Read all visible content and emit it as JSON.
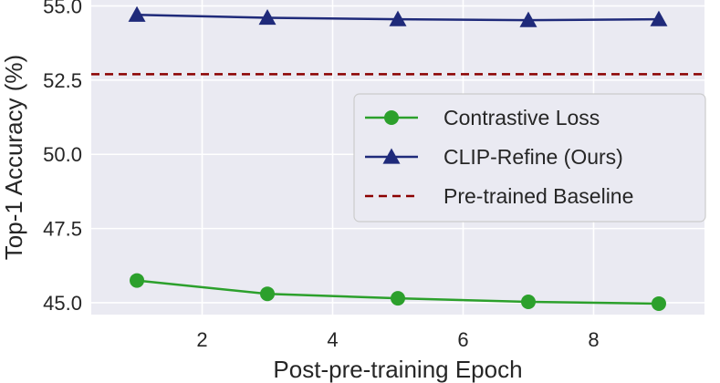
{
  "chart_data": {
    "type": "line",
    "title": "",
    "xlabel": "Post-pre-training Epoch",
    "ylabel": "Top-1 Accuracy (%)",
    "xlim": [
      0.3,
      9.7
    ],
    "ylim": [
      44.6,
      55.2
    ],
    "xticks": [
      2,
      4,
      6,
      8
    ],
    "xtick_labels": [
      "2",
      "4",
      "6",
      "8"
    ],
    "yticks": [
      45.0,
      47.5,
      50.0,
      52.5,
      55.0
    ],
    "ytick_labels": [
      "45.0",
      "47.5",
      "50.0",
      "52.5",
      "55.0"
    ],
    "grid": true,
    "legend_position": "center-right",
    "x": [
      1,
      3,
      5,
      7,
      9
    ],
    "series": [
      {
        "name": "Contrastive Loss",
        "values": [
          45.75,
          45.3,
          45.15,
          45.03,
          44.97
        ],
        "color": "#2ca02c",
        "marker": "circle",
        "linestyle": "solid"
      },
      {
        "name": "CLIP-Refine (Ours)",
        "values": [
          54.7,
          54.6,
          54.55,
          54.52,
          54.55
        ],
        "color": "#1f2a7a",
        "marker": "triangle",
        "linestyle": "solid"
      }
    ],
    "baseline": {
      "name": "Pre-trained Baseline",
      "value": 52.7,
      "color": "#8b0000",
      "linestyle": "dashed"
    }
  }
}
